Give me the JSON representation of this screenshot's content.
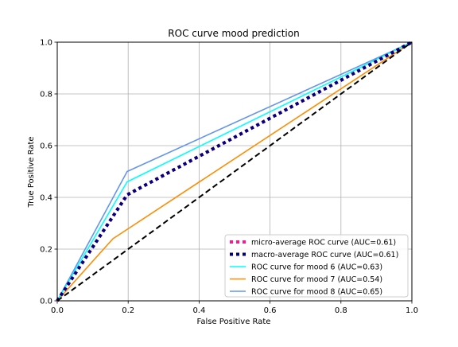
{
  "chart_data": {
    "type": "line",
    "title": "ROC curve mood prediction",
    "xlabel": "False Positive Rate",
    "ylabel": "True Positive Rate",
    "xlim": [
      0.0,
      1.0
    ],
    "ylim": [
      0.0,
      1.0
    ],
    "xticks": [
      "0.0",
      "0.2",
      "0.4",
      "0.6",
      "0.8",
      "1.0"
    ],
    "yticks": [
      "0.0",
      "0.2",
      "0.4",
      "0.6",
      "0.8",
      "1.0"
    ],
    "xtick_values": [
      0.0,
      0.2,
      0.4,
      0.6,
      0.8,
      1.0
    ],
    "ytick_values": [
      0.0,
      0.2,
      0.4,
      0.6,
      0.8,
      1.0
    ],
    "grid": true,
    "legend_position": "lower-right",
    "series": [
      {
        "name": "micro-average ROC curve (AUC=0.61)",
        "color": "#ff1493",
        "style": "dotted",
        "x": [
          0.0,
          0.197,
          1.0
        ],
        "y": [
          0.0,
          0.41,
          1.0
        ]
      },
      {
        "name": "macro-average ROC curve (AUC=0.61)",
        "color": "#000080",
        "style": "dotted",
        "x": [
          0.0,
          0.197,
          1.0
        ],
        "y": [
          0.0,
          0.41,
          1.0
        ]
      },
      {
        "name": "ROC curve for mood 6 (AUC=0.63)",
        "color": "#00ffff",
        "style": "solid",
        "x": [
          0.0,
          0.197,
          1.0
        ],
        "y": [
          0.0,
          0.46,
          1.0
        ]
      },
      {
        "name": "ROC curve for mood 7 (AUC=0.54)",
        "color": "#ff8c00",
        "style": "solid",
        "x": [
          0.0,
          0.157,
          1.0
        ],
        "y": [
          0.0,
          0.24,
          1.0
        ]
      },
      {
        "name": "ROC curve for mood 8 (AUC=0.65)",
        "color": "#6495ed",
        "style": "solid",
        "x": [
          0.0,
          0.197,
          1.0
        ],
        "y": [
          0.0,
          0.5,
          1.0
        ]
      }
    ],
    "reference_line": {
      "color": "#000000",
      "style": "dashed",
      "x": [
        0.0,
        1.0
      ],
      "y": [
        0.0,
        1.0
      ]
    }
  }
}
